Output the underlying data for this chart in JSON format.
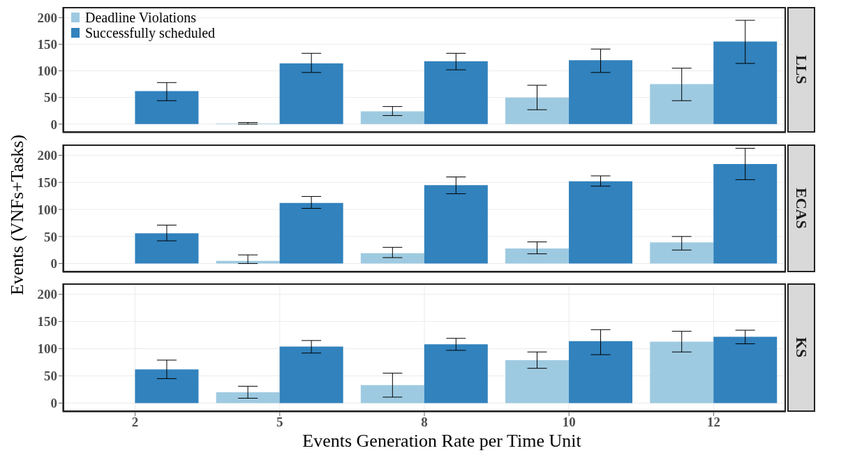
{
  "chart_data": [
    {
      "type": "bar",
      "title": "LLS",
      "categories": [
        "2",
        "5",
        "8",
        "10",
        "12"
      ],
      "ylim": [
        -16,
        220
      ],
      "yticks": [
        0,
        50,
        100,
        150,
        200
      ],
      "grid": true,
      "legend": "top left",
      "tick_labels": "y",
      "series": [
        {
          "name": "Deadline Violations",
          "color": "#9ecae1",
          "values": [
            0,
            1,
            24,
            50,
            75
          ],
          "errors": [
            [
              0,
              0
            ],
            [
              0,
              3
            ],
            [
              16,
              33
            ],
            [
              27,
              73
            ],
            [
              44,
              105
            ]
          ]
        },
        {
          "name": "Successfully scheduled",
          "color": "#3182bd",
          "values": [
            62,
            114,
            118,
            120,
            155
          ],
          "errors": [
            [
              44,
              78
            ],
            [
              97,
              133
            ],
            [
              102,
              133
            ],
            [
              97,
              141
            ],
            [
              114,
              195
            ]
          ]
        }
      ]
    },
    {
      "type": "bar",
      "title": "ECAS",
      "ylabel": "Events (VNFs+Tasks)",
      "categories": [
        "2",
        "5",
        "8",
        "10",
        "12"
      ],
      "ylim": [
        -16,
        220
      ],
      "yticks": [
        0,
        50,
        100,
        150,
        200
      ],
      "grid": true,
      "tick_labels": "y",
      "series": [
        {
          "color": "#9ecae1",
          "values": [
            0,
            5,
            19,
            28,
            39
          ],
          "errors": [
            [
              0,
              0
            ],
            [
              0,
              16
            ],
            [
              11,
              30
            ],
            [
              18,
              40
            ],
            [
              25,
              50
            ]
          ]
        },
        {
          "color": "#3182bd",
          "values": [
            56,
            112,
            145,
            152,
            184
          ],
          "errors": [
            [
              42,
              71
            ],
            [
              102,
              124
            ],
            [
              129,
              160
            ],
            [
              143,
              162
            ],
            [
              155,
              213
            ]
          ]
        }
      ]
    },
    {
      "type": "bar",
      "title": "KS",
      "xlabel": "Events Generation Rate per Time Unit",
      "categories": [
        "2",
        "5",
        "8",
        "10",
        "12"
      ],
      "ylim": [
        -16,
        220
      ],
      "yticks": [
        0,
        50,
        100,
        150,
        200
      ],
      "grid": true,
      "series": [
        {
          "color": "#9ecae1",
          "values": [
            0,
            20,
            33,
            79,
            113
          ],
          "errors": [
            [
              0,
              0
            ],
            [
              9,
              31
            ],
            [
              11,
              55
            ],
            [
              64,
              94
            ],
            [
              94,
              132
            ]
          ]
        },
        {
          "color": "#3182bd",
          "values": [
            62,
            104,
            108,
            114,
            122
          ],
          "errors": [
            [
              45,
              79
            ],
            [
              92,
              115
            ],
            [
              97,
              119
            ],
            [
              89,
              135
            ],
            [
              109,
              134
            ]
          ]
        }
      ]
    }
  ]
}
